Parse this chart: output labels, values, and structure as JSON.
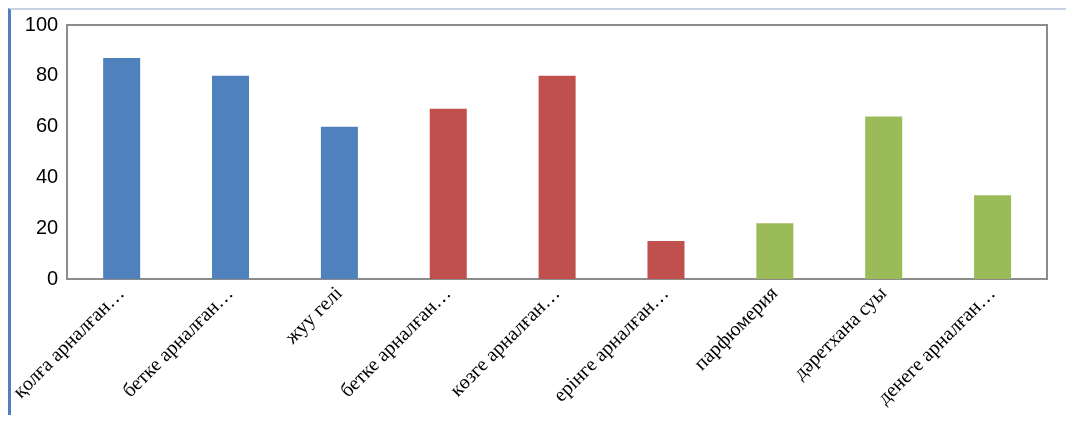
{
  "chart_data": {
    "type": "bar",
    "categories": [
      "қолға арналған…",
      "бетке арналған…",
      "жуу гелі",
      "бетке арналған…",
      "көзге арналған…",
      "ерінге арналған…",
      "парфюмерия",
      "дәретхана суы",
      "денеге арналған…"
    ],
    "values": [
      87,
      80,
      60,
      67,
      80,
      15,
      22,
      64,
      33
    ],
    "colors": [
      "#4f81bd",
      "#4f81bd",
      "#4f81bd",
      "#c0504d",
      "#c0504d",
      "#c0504d",
      "#9bbb59",
      "#9bbb59",
      "#9bbb59"
    ],
    "ylim": [
      0,
      100
    ],
    "yticks": [
      0,
      20,
      40,
      60,
      80,
      100
    ],
    "grid": false,
    "legend": false
  }
}
